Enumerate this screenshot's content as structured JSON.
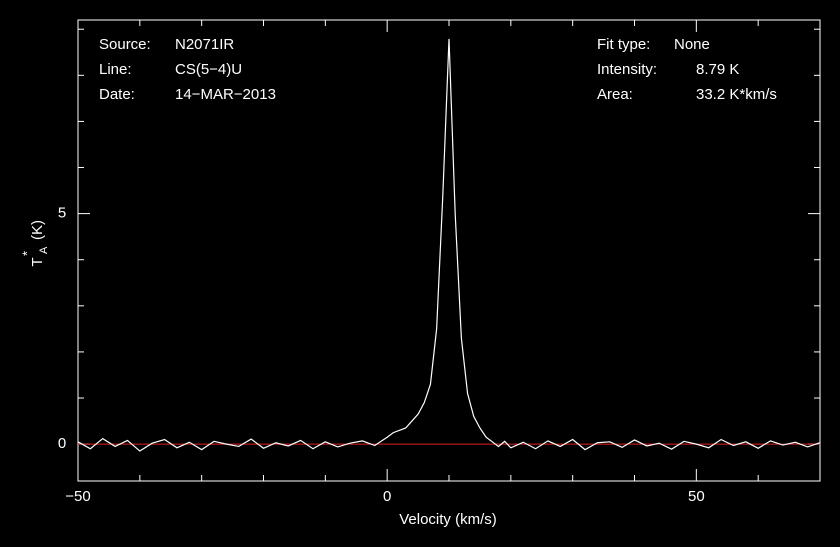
{
  "chart_data": {
    "type": "line",
    "x_label": "Velocity (km/s)",
    "y_label": {
      "symbol": "T",
      "sub": "A",
      "sup": "*",
      "unit": "(K)"
    },
    "annotations_left": [
      {
        "label": "Source:",
        "value": "N2071IR"
      },
      {
        "label": "Line:",
        "value": "CS(5−4)U"
      },
      {
        "label": "Date:",
        "value": "14−MAR−2013"
      }
    ],
    "annotations_right": [
      {
        "label": "Fit type:",
        "value": "None"
      },
      {
        "label": "Intensity:",
        "value": "8.79 K"
      },
      {
        "label": "Area:",
        "value": "33.2 K*km/s"
      }
    ],
    "xlim": [
      -50,
      70
    ],
    "ylim": [
      -0.8,
      9.2
    ],
    "xticks": [
      {
        "value": -50,
        "label": "−50"
      },
      0,
      50
    ],
    "yticks": [
      0,
      5
    ],
    "x_minor_ticks": [
      -40,
      -30,
      -20,
      -10,
      10,
      20,
      30,
      40,
      60,
      70
    ],
    "y_minor_ticks": [
      1,
      2,
      3,
      4,
      6,
      7,
      8,
      9
    ],
    "baseline": 0,
    "baseline_color": "#e02020",
    "series": [
      {
        "color": "#ffffff",
        "x": [
          -50,
          -48,
          -46,
          -44,
          -42,
          -40,
          -38,
          -36,
          -34,
          -32,
          -30,
          -28,
          -26,
          -24,
          -22,
          -20,
          -18,
          -16,
          -14,
          -12,
          -10,
          -8,
          -6,
          -4,
          -2,
          0,
          1,
          2,
          3,
          4,
          5,
          6,
          7,
          8,
          9,
          10,
          11,
          12,
          13,
          14,
          15,
          16,
          17,
          18,
          19,
          20,
          22,
          24,
          26,
          28,
          30,
          32,
          34,
          36,
          38,
          40,
          42,
          44,
          46,
          48,
          50,
          52,
          54,
          56,
          58,
          60,
          62,
          64,
          66,
          68,
          70
        ],
        "values": [
          0.05,
          -0.1,
          0.12,
          -0.05,
          0.08,
          -0.15,
          0.02,
          0.1,
          -0.08,
          0.04,
          -0.12,
          0.06,
          0.0,
          -0.05,
          0.11,
          -0.09,
          0.03,
          -0.04,
          0.08,
          -0.1,
          0.05,
          -0.06,
          0.02,
          0.07,
          -0.03,
          0.15,
          0.25,
          0.3,
          0.35,
          0.5,
          0.65,
          0.9,
          1.3,
          2.5,
          5.4,
          8.79,
          5.0,
          2.3,
          1.1,
          0.6,
          0.35,
          0.15,
          0.05,
          -0.05,
          0.06,
          -0.08,
          0.04,
          -0.1,
          0.07,
          -0.05,
          0.1,
          -0.12,
          0.03,
          0.05,
          -0.07,
          0.09,
          -0.04,
          0.02,
          -0.11,
          0.06,
          0.0,
          -0.08,
          0.1,
          -0.03,
          0.05,
          -0.09,
          0.07,
          -0.02,
          0.04,
          -0.06,
          0.03
        ]
      }
    ]
  }
}
